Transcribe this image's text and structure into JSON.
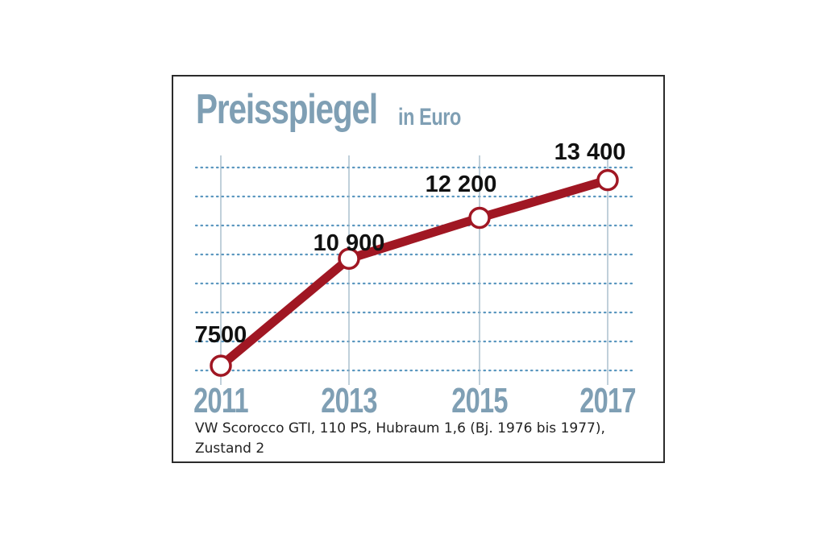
{
  "header": {
    "title": "Preisspiegel",
    "unit": "in Euro"
  },
  "chart_data": {
    "type": "line",
    "title": "Preisspiegel",
    "subtitle": "in Euro",
    "x": [
      "2011",
      "2013",
      "2015",
      "2017"
    ],
    "series": [
      {
        "values": [
          7500,
          10900,
          12200,
          13400
        ],
        "labels": [
          "7500",
          "10 900",
          "12 200",
          "13 400"
        ]
      }
    ],
    "ylim": [
      7400,
      13800
    ],
    "grid": true,
    "legend": "none",
    "colors": {
      "line": "#a01723",
      "axis_labels": "#7f9fb4",
      "grid": "#5b97bf",
      "point_fill": "#ffffff"
    }
  },
  "footer": {
    "caption_line1": "VW Scorocco GTI, 110 PS, Hubraum 1,6 (Bj. 1976 bis 1977),",
    "caption_line2": "Zustand 2"
  }
}
